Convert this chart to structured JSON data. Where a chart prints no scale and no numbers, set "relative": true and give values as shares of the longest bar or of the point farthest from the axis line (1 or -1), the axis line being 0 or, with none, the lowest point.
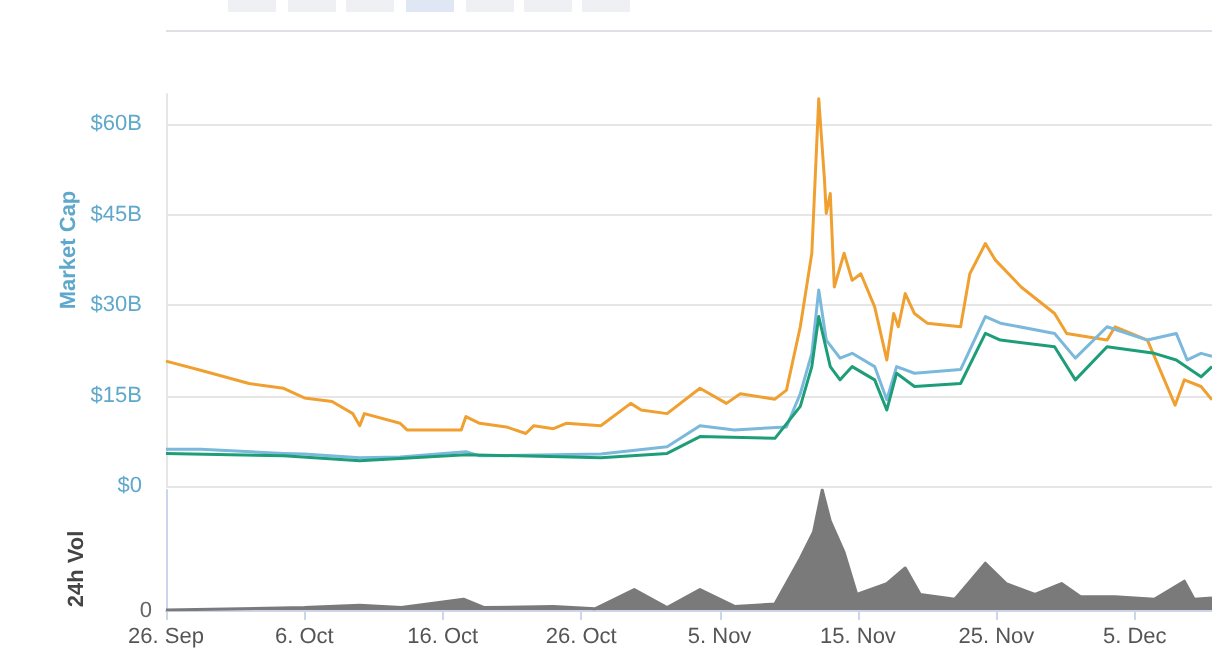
{
  "chart_data": [
    {
      "type": "line",
      "ylabel": "Market Cap",
      "xlim": [
        "--09-26",
        "--12-10T14:00"
      ],
      "ylim": [
        0,
        65
      ],
      "xticks": [
        {
          "value": "--09-26",
          "label": "26. Sep"
        },
        {
          "value": "--10-06",
          "label": "6. Oct"
        },
        {
          "value": "--10-16",
          "label": "16. Oct"
        },
        {
          "value": "--10-26",
          "label": "26. Oct"
        },
        {
          "value": "--11-05",
          "label": "5. Nov"
        },
        {
          "value": "--11-15",
          "label": "15. Nov"
        },
        {
          "value": "--11-25",
          "label": "25. Nov"
        },
        {
          "value": "--12-05",
          "label": "5. Dec"
        }
      ],
      "yticks": [
        {
          "value": 0,
          "label": "$0"
        },
        {
          "value": 15,
          "label": "$15B"
        },
        {
          "value": 30,
          "label": "$30B"
        },
        {
          "value": 45,
          "label": "$45B"
        },
        {
          "value": 60,
          "label": "$60B"
        }
      ],
      "grid": "y",
      "tick_labels": "y",
      "series": [
        {
          "color": "#f0a030",
          "x": [
            "--09-26",
            "--09-28T12:00",
            "--10-02",
            "--10-04T12:00",
            "--10-06",
            "--10-08",
            "--10-09T12:00",
            "--10-10",
            "--10-10T08:00",
            "--10-12T22:00",
            "--10-13T10:00",
            "--10-17T08:00",
            "--10-17T16:00",
            "--10-18T16:00",
            "--10-20T14:00",
            "--10-22",
            "--10-22T14:00",
            "--10-24",
            "--10-24T22:00",
            "--10-27T10:00",
            "--10-29T14:00",
            "--10-30T08:00",
            "--11-01T05:00",
            "--11-03T14:00",
            "--11-05T12:00",
            "--11-06T12:00",
            "--11-09",
            "--11-09T20:00",
            "--11-10T20:00",
            "--11-11T16:00",
            "--11-12T04:00",
            "--11-12T14:00",
            "--11-12T17:00",
            "--11-13",
            "--11-13T07:00",
            "--11-14",
            "--11-14T14:00",
            "--11-15T05:00",
            "--11-16T05:00",
            "--11-17T02:00",
            "--11-17T14:00",
            "--11-17T22:00",
            "--11-18T10:00",
            "--11-19T02:00",
            "--11-20",
            "--11-22T10:00",
            "--11-23T02:00",
            "--11-24T05:00",
            "--11-24T22:00",
            "--11-26T19:00",
            "--11-29T05:00",
            "--11-30T02:00",
            "--12-03",
            "--12-03T14:00",
            "--12-05T22:00",
            "--12-07T22:00",
            "--12-08T14:00",
            "--12-09T19:00",
            "--12-10T14:00"
          ],
          "values": [
            20.7,
            19.2,
            17.0,
            16.2,
            14.6,
            14.0,
            12.0,
            10.0,
            12.0,
            10.4,
            9.3,
            9.3,
            11.5,
            10.4,
            9.8,
            8.7,
            10.0,
            9.5,
            10.4,
            10.0,
            13.7,
            12.6,
            12.0,
            16.2,
            13.7,
            15.3,
            14.4,
            15.9,
            26.4,
            38.6,
            64.2,
            50.7,
            45.2,
            48.5,
            33.0,
            38.6,
            34.1,
            35.2,
            29.7,
            20.9,
            28.6,
            26.4,
            31.9,
            28.6,
            27.0,
            26.4,
            35.2,
            40.2,
            37.5,
            33.0,
            28.6,
            25.3,
            24.2,
            26.4,
            24.2,
            13.4,
            17.6,
            16.5,
            14.3
          ]
        },
        {
          "color": "#7ab8dc",
          "x": [
            "--09-26",
            "--09-28T12:00",
            "--10-04T12:00",
            "--10-06",
            "--10-10",
            "--10-12T22:00",
            "--10-17T16:00",
            "--10-18T16:00",
            "--10-27T10:00",
            "--11-01T05:00",
            "--11-03T14:00",
            "--11-06T02:00",
            "--11-09T20:00",
            "--11-10T20:00",
            "--11-11T16:00",
            "--11-12T04:00",
            "--11-12T17:00",
            "--11-13T17:00",
            "--11-14T14:00",
            "--11-16T05:00",
            "--11-17T02:00",
            "--11-17T19:00",
            "--11-19T02:00",
            "--11-22T10:00",
            "--11-24T05:00",
            "--11-25T07:00",
            "--11-29T05:00",
            "--11-30T17:00",
            "--12-03",
            "--12-05T22:00",
            "--12-08",
            "--12-08T19:00",
            "--12-09T19:00",
            "--12-10T14:00"
          ],
          "values": [
            6.1,
            6.1,
            5.4,
            5.3,
            4.7,
            4.8,
            5.7,
            5.0,
            5.3,
            6.5,
            10.0,
            9.3,
            9.8,
            15.3,
            22.0,
            32.5,
            24.2,
            21.2,
            22.0,
            19.8,
            14.3,
            19.8,
            18.7,
            19.3,
            28.1,
            27.0,
            25.3,
            21.2,
            26.4,
            24.2,
            25.3,
            20.9,
            22.0,
            21.5
          ]
        },
        {
          "color": "#1e9e78",
          "x": [
            "--09-26",
            "--10-04T12:00",
            "--10-10",
            "--10-17T16:00",
            "--10-27T10:00",
            "--11-01T05:00",
            "--11-03T14:00",
            "--11-09",
            "--11-10T20:00",
            "--11-11T16:00",
            "--11-12T04:00",
            "--11-13",
            "--11-13T17:00",
            "--11-14T14:00",
            "--11-16T05:00",
            "--11-17T02:00",
            "--11-17T19:00",
            "--11-19T02:00",
            "--11-22T10:00",
            "--11-24T05:00",
            "--11-25T07:00",
            "--11-29T05:00",
            "--11-30T17:00",
            "--12-03",
            "--12-06T10:00",
            "--12-08",
            "--12-09T19:00",
            "--12-10T14:00"
          ],
          "values": [
            5.4,
            5.0,
            4.2,
            5.2,
            4.7,
            5.4,
            8.2,
            7.9,
            13.2,
            19.8,
            28.1,
            19.8,
            17.6,
            19.8,
            17.6,
            12.6,
            18.7,
            16.5,
            17.0,
            25.3,
            24.2,
            23.1,
            17.6,
            23.1,
            22.0,
            20.9,
            18.1,
            19.8
          ]
        }
      ]
    },
    {
      "type": "area",
      "ylabel": "24h Vol",
      "relative": true,
      "tick_labels": "x",
      "annotations": [
        "0"
      ],
      "xlim": [
        "--09-26",
        "--12-10T14:00"
      ],
      "xticks": [
        {
          "value": "--09-26",
          "label": "26. Sep"
        },
        {
          "value": "--10-06",
          "label": "6. Oct"
        },
        {
          "value": "--10-16",
          "label": "16. Oct"
        },
        {
          "value": "--10-26",
          "label": "26. Oct"
        },
        {
          "value": "--11-05",
          "label": "5. Nov"
        },
        {
          "value": "--11-15",
          "label": "15. Nov"
        },
        {
          "value": "--11-25",
          "label": "25. Nov"
        },
        {
          "value": "--12-05",
          "label": "5. Dec"
        }
      ],
      "series": [
        {
          "color": "#7a7a7a",
          "x": [
            "--09-26",
            "--10-06",
            "--10-10",
            "--10-13",
            "--10-17T12:00",
            "--10-19",
            "--10-24",
            "--10-27",
            "--10-29T20:00",
            "--11-01T05:00",
            "--11-03T14:00",
            "--11-06T02:00",
            "--11-09",
            "--11-10T20:00",
            "--11-11T19:00",
            "--11-12T10:00",
            "--11-13",
            "--11-14",
            "--11-14T22:00",
            "--11-17T02:00",
            "--11-18T10:00",
            "--11-19T12:00",
            "--11-22",
            "--11-24T05:00",
            "--11-25T17:00",
            "--11-27T19:00",
            "--11-29T17:00",
            "--12-01T02:00",
            "--12-03T14:00",
            "--12-06T10:00",
            "--12-08T14:00",
            "--12-09T07:00",
            "--12-10T14:00"
          ],
          "values": [
            0,
            0.02,
            0.04,
            0.02,
            0.09,
            0.02,
            0.03,
            0.01,
            0.17,
            0.02,
            0.17,
            0.03,
            0.05,
            0.43,
            0.65,
            1,
            0.74,
            0.48,
            0.13,
            0.22,
            0.35,
            0.13,
            0.09,
            0.39,
            0.22,
            0.13,
            0.22,
            0.11,
            0.11,
            0.09,
            0.24,
            0.09,
            0.1
          ]
        }
      ]
    }
  ]
}
